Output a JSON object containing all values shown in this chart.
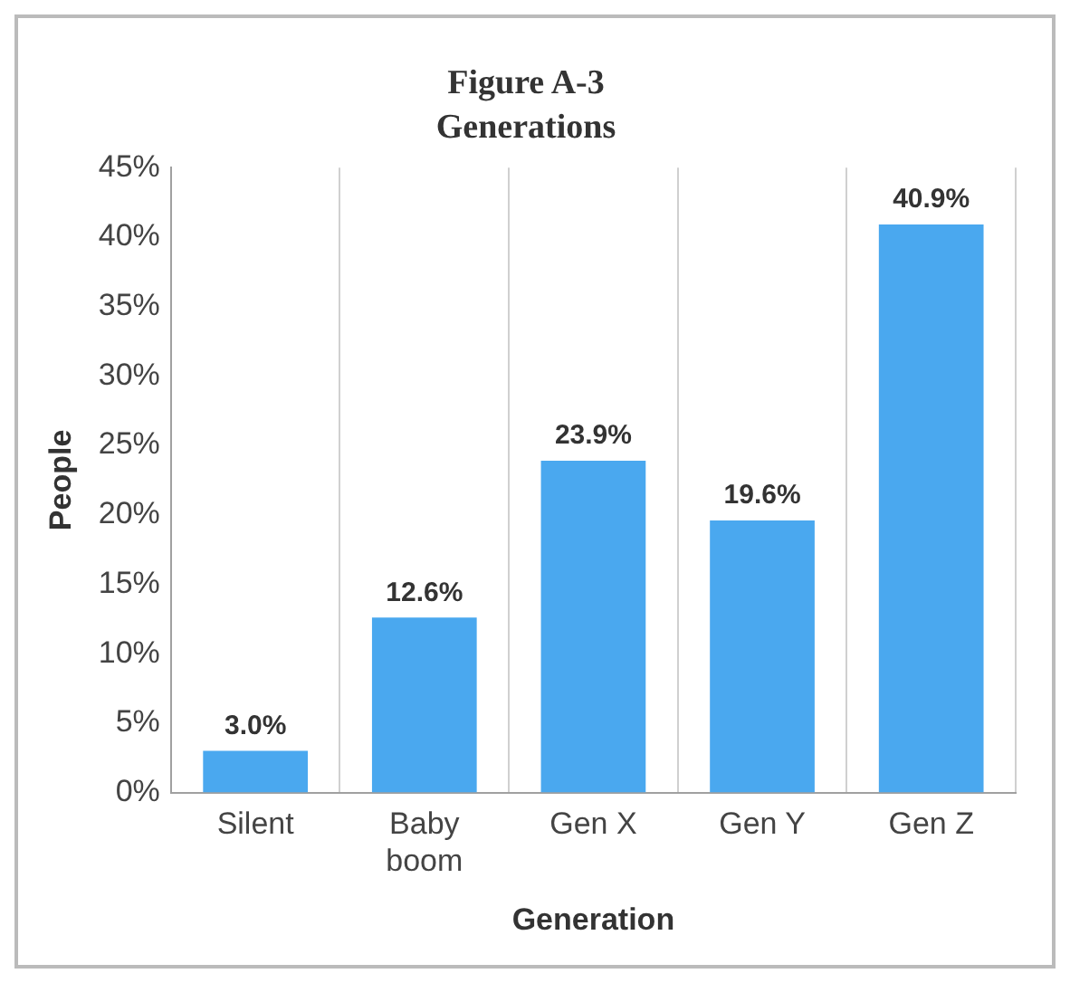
{
  "chart_data": {
    "type": "bar",
    "title": "Figure A-3",
    "subtitle": "Generations",
    "xlabel": "Generation",
    "ylabel": "People",
    "categories": [
      "Silent",
      "Baby boom",
      "Gen X",
      "Gen Y",
      "Gen Z"
    ],
    "values": [
      3.0,
      12.6,
      23.9,
      19.6,
      40.9
    ],
    "color": "#4aa8ef",
    "value_labels": [
      "3.0%",
      "12.6%",
      "23.9%",
      "19.6%",
      "40.9%"
    ],
    "ylim": [
      0,
      45
    ],
    "yticks": [
      {
        "value": 0,
        "label": "0%"
      },
      {
        "value": 5,
        "label": "5%"
      },
      {
        "value": 10,
        "label": "10%"
      },
      {
        "value": 15,
        "label": "15%"
      },
      {
        "value": 20,
        "label": "20%"
      },
      {
        "value": 25,
        "label": "25%"
      },
      {
        "value": 30,
        "label": "30%"
      },
      {
        "value": 35,
        "label": "35%"
      },
      {
        "value": 40,
        "label": "40%"
      },
      {
        "value": 45,
        "label": "45%"
      }
    ],
    "grid": "x",
    "legend": false
  }
}
